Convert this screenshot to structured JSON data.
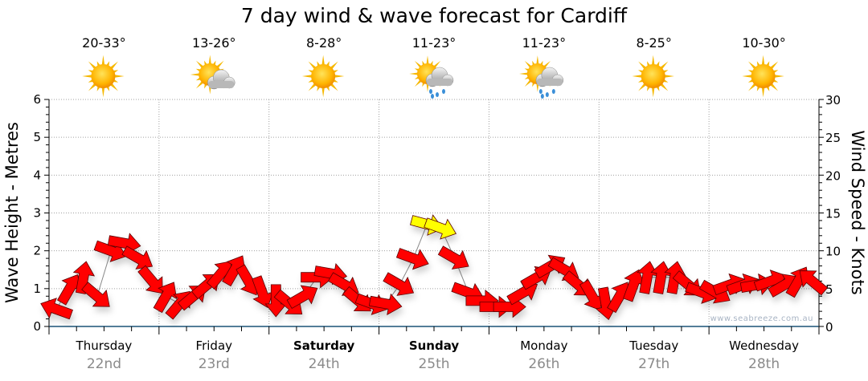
{
  "chart_data": {
    "type": "line",
    "title": "7 day wind & wave forecast for Cardiff",
    "ylabel": "Wave Height - Metres",
    "ylabel_right": "Wind Speed - Knots",
    "ylim": [
      0,
      6
    ],
    "ylim_right": [
      0,
      30
    ],
    "yticks": [
      "0",
      "1",
      "2",
      "3",
      "4",
      "5",
      "6"
    ],
    "yticks_right": [
      "0",
      "5",
      "10",
      "15",
      "20",
      "25",
      "30"
    ],
    "grid": true,
    "watermark": "www.seabreeze.com.au",
    "days": [
      {
        "name": "Thursday",
        "date": "22nd",
        "temp": "20-33°",
        "icon": "sunny-icon",
        "bold": false
      },
      {
        "name": "Friday",
        "date": "23rd",
        "temp": "13-26°",
        "icon": "partly-cloudy-icon",
        "bold": false
      },
      {
        "name": "Saturday",
        "date": "24th",
        "temp": "8-28°",
        "icon": "sunny-icon",
        "bold": true
      },
      {
        "name": "Sunday",
        "date": "25th",
        "temp": "11-23°",
        "icon": "showers-icon",
        "bold": true
      },
      {
        "name": "Monday",
        "date": "26th",
        "temp": "11-23°",
        "icon": "showers-icon",
        "bold": false
      },
      {
        "name": "Tuesday",
        "date": "27th",
        "temp": "8-25°",
        "icon": "sunny-icon",
        "bold": false
      },
      {
        "name": "Wednesday",
        "date": "28th",
        "temp": "10-30°",
        "icon": "sunny-icon",
        "bold": false
      }
    ],
    "wind_interval_hours": 3,
    "wind_knots": [
      2.3,
      5,
      6.5,
      4,
      10,
      11,
      9,
      6,
      4,
      3,
      4,
      5.5,
      7,
      7.5,
      6,
      4.5,
      3.4,
      3,
      4,
      6.5,
      7,
      5.5,
      3.4,
      3,
      3,
      5.5,
      9,
      13.5,
      13,
      9,
      4.5,
      3.4,
      2.6,
      2.6,
      4.5,
      6.5,
      8,
      7.5,
      5.5,
      4,
      3,
      4,
      5.5,
      6.5,
      6.5,
      6.5,
      5.5,
      4.5,
      4.5,
      5.5,
      5.5,
      5.5,
      6,
      5.5,
      6,
      6
    ],
    "wind_arrow_angle_deg": [
      200,
      -60,
      -80,
      40,
      20,
      10,
      30,
      50,
      -60,
      -50,
      -40,
      -40,
      -50,
      -60,
      60,
      70,
      90,
      40,
      -30,
      0,
      10,
      30,
      40,
      20,
      10,
      30,
      20,
      15,
      20,
      30,
      20,
      0,
      0,
      0,
      -30,
      -30,
      -30,
      30,
      40,
      60,
      80,
      -60,
      -70,
      -80,
      -80,
      -80,
      40,
      20,
      30,
      -20,
      -20,
      -10,
      -20,
      -30,
      -60,
      -140
    ],
    "yellow_threshold_knots": 12,
    "colors": {
      "arrow": "#ff0000",
      "arrow_strong": "#ffff00",
      "grid": "#999999",
      "axis": "#1a5276"
    }
  }
}
